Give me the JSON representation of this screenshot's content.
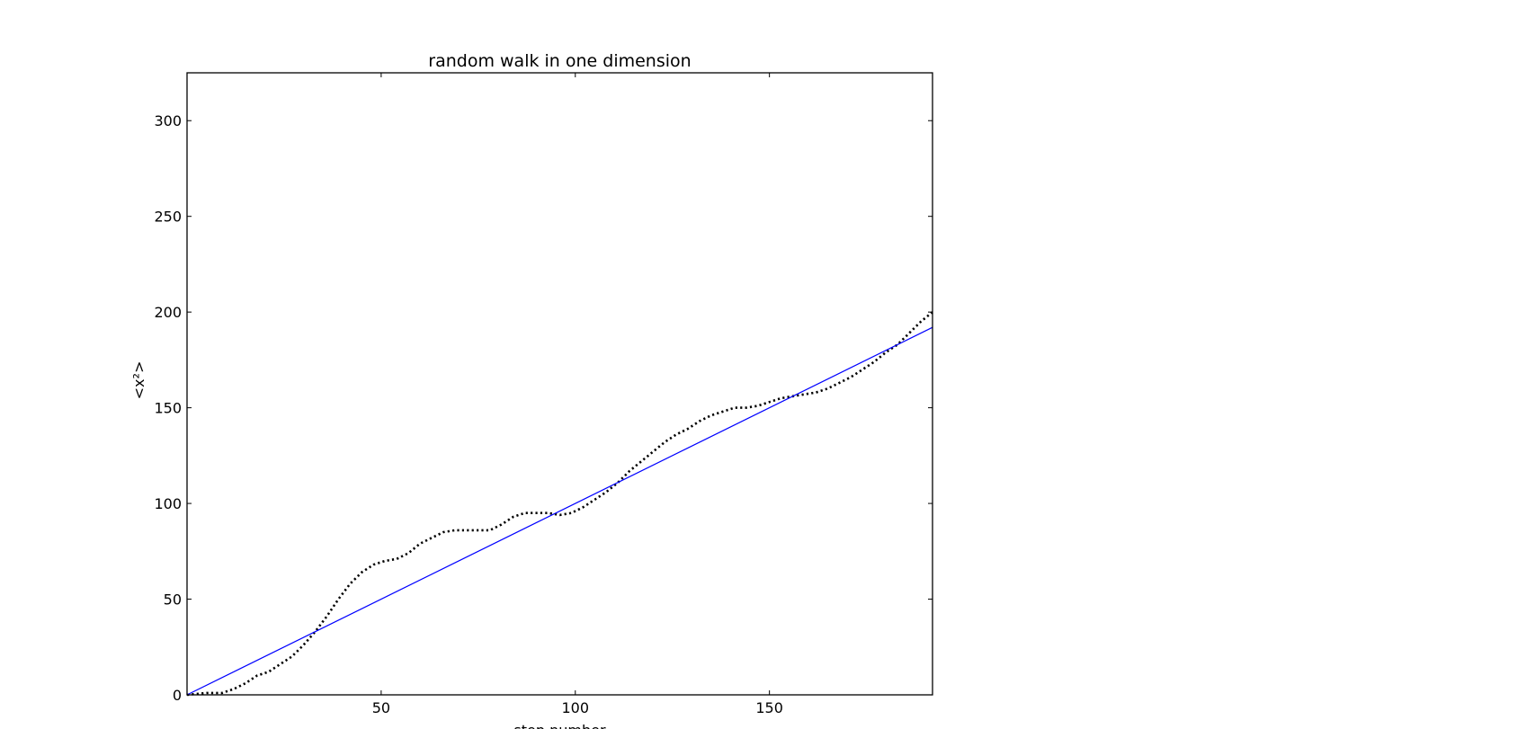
{
  "chart_data": {
    "type": "line",
    "title": "random walk in one dimension",
    "xlabel": "step number",
    "ylabel": "<x²>",
    "xlim": [
      0,
      192
    ],
    "ylim": [
      0,
      325
    ],
    "xticks": [
      50,
      100,
      150
    ],
    "yticks": [
      0,
      50,
      100,
      150,
      200,
      250,
      300
    ],
    "grid": false,
    "series": [
      {
        "style": "dotted",
        "color": "#000000",
        "x": [
          0,
          5,
          9,
          12,
          15,
          18,
          21,
          24,
          27,
          30,
          33,
          36,
          39,
          42,
          45,
          48,
          51,
          54,
          57,
          60,
          63,
          66,
          69,
          72,
          75,
          78,
          81,
          84,
          87,
          90,
          93,
          96,
          99,
          102,
          105,
          108,
          111,
          114,
          117,
          120,
          123,
          126,
          129,
          132,
          135,
          138,
          141,
          144,
          147,
          150,
          153,
          156,
          159,
          162,
          165,
          168,
          171,
          174,
          177,
          180,
          183,
          186,
          189,
          192
        ],
        "y": [
          0,
          1,
          1,
          3,
          6,
          10,
          12,
          16,
          20,
          26,
          33,
          41,
          50,
          58,
          64,
          68,
          70,
          71,
          74,
          79,
          82,
          85,
          86,
          86,
          86,
          86,
          89,
          93,
          95,
          95,
          95,
          94,
          95,
          98,
          102,
          106,
          111,
          117,
          122,
          127,
          132,
          136,
          139,
          143,
          146,
          148,
          150,
          150,
          151,
          153,
          155,
          156,
          157,
          158,
          160,
          163,
          166,
          170,
          174,
          179,
          183,
          189,
          195,
          200
        ]
      },
      {
        "style": "solid",
        "color": "#0000ff",
        "x": [
          0,
          192
        ],
        "y": [
          0,
          192
        ]
      }
    ]
  }
}
